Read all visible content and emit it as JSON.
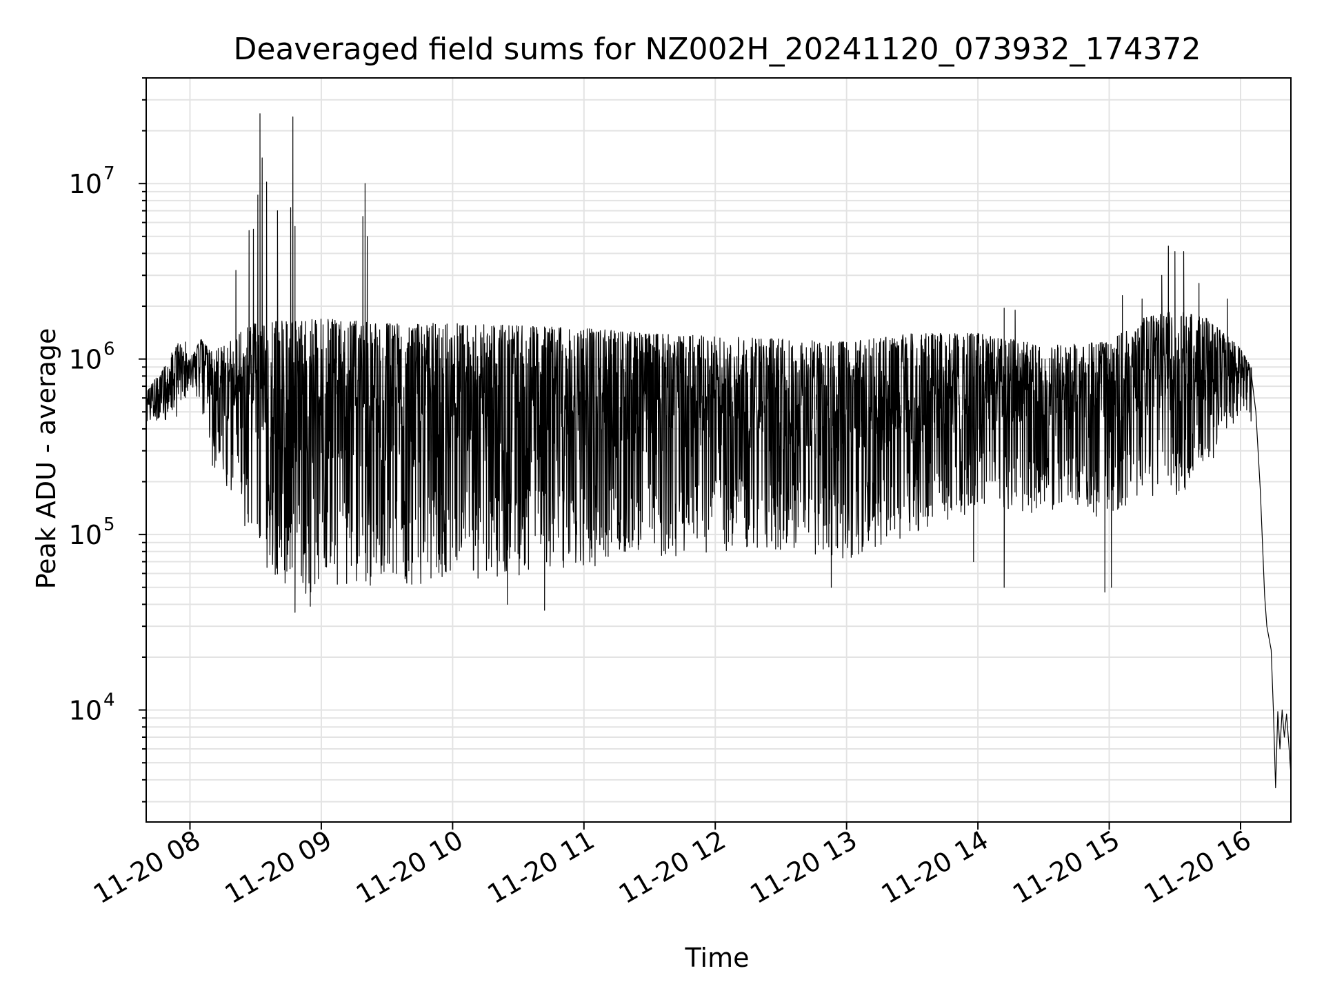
{
  "chart_data": {
    "type": "line",
    "title": "Deaveraged field sums for NZ002H_20241120_073932_174372",
    "xlabel": "Time",
    "ylabel": "Peak ADU - average",
    "yscale": "log",
    "ylim": [
      2300,
      40000000
    ],
    "xlim": [
      "2024-11-20T07:40",
      "2024-11-20T16:23"
    ],
    "grid": true,
    "x_ticks": [
      {
        "value": "2024-11-20T08:00",
        "label": "11-20 08"
      },
      {
        "value": "2024-11-20T09:00",
        "label": "11-20 09"
      },
      {
        "value": "2024-11-20T10:00",
        "label": "11-20 10"
      },
      {
        "value": "2024-11-20T11:00",
        "label": "11-20 11"
      },
      {
        "value": "2024-11-20T12:00",
        "label": "11-20 12"
      },
      {
        "value": "2024-11-20T13:00",
        "label": "11-20 13"
      },
      {
        "value": "2024-11-20T14:00",
        "label": "11-20 14"
      },
      {
        "value": "2024-11-20T15:00",
        "label": "11-20 15"
      },
      {
        "value": "2024-11-20T16:00",
        "label": "11-20 16"
      }
    ],
    "y_ticks": [
      {
        "value": 10000,
        "base": "10",
        "exp": "4"
      },
      {
        "value": 100000,
        "base": "10",
        "exp": "5"
      },
      {
        "value": 1000000,
        "base": "10",
        "exp": "6"
      },
      {
        "value": 10000000,
        "base": "10",
        "exp": "7"
      }
    ],
    "series": [
      {
        "color": "#000000",
        "envelope": [
          {
            "x": "2024-11-20T07:40",
            "low": 420000,
            "high": 650000
          },
          {
            "x": "2024-11-20T07:55",
            "low": 400000,
            "high": 1250000
          },
          {
            "x": "2024-11-20T08:00",
            "low": 700000,
            "high": 1000000
          },
          {
            "x": "2024-11-20T08:05",
            "low": 480000,
            "high": 1300000
          },
          {
            "x": "2024-11-20T08:10",
            "low": 250000,
            "high": 1100000
          },
          {
            "x": "2024-11-20T08:15",
            "low": 200000,
            "high": 1200000
          },
          {
            "x": "2024-11-20T08:20",
            "low": 140000,
            "high": 1300000
          },
          {
            "x": "2024-11-20T08:25",
            "low": 95000,
            "high": 1500000
          },
          {
            "x": "2024-11-20T08:30",
            "low": 75000,
            "high": 1600000
          },
          {
            "x": "2024-11-20T08:35",
            "low": 65000,
            "high": 1600000
          },
          {
            "x": "2024-11-20T08:40",
            "low": 55000,
            "high": 1650000
          },
          {
            "x": "2024-11-20T08:50",
            "low": 45000,
            "high": 1650000
          },
          {
            "x": "2024-11-20T09:00",
            "low": 47000,
            "high": 1700000
          },
          {
            "x": "2024-11-20T09:15",
            "low": 52000,
            "high": 1650000
          },
          {
            "x": "2024-11-20T09:30",
            "low": 50000,
            "high": 1600000
          },
          {
            "x": "2024-11-20T10:00",
            "low": 55000,
            "high": 1600000
          },
          {
            "x": "2024-11-20T10:30",
            "low": 58000,
            "high": 1550000
          },
          {
            "x": "2024-11-20T11:00",
            "low": 62000,
            "high": 1500000
          },
          {
            "x": "2024-11-20T11:30",
            "low": 72000,
            "high": 1400000
          },
          {
            "x": "2024-11-20T12:00",
            "low": 78000,
            "high": 1350000
          },
          {
            "x": "2024-11-20T12:30",
            "low": 82000,
            "high": 1300000
          },
          {
            "x": "2024-11-20T13:00",
            "low": 72000,
            "high": 1250000
          },
          {
            "x": "2024-11-20T13:30",
            "low": 100000,
            "high": 1400000
          },
          {
            "x": "2024-11-20T14:00",
            "low": 135000,
            "high": 1400000
          },
          {
            "x": "2024-11-20T14:30",
            "low": 130000,
            "high": 1200000
          },
          {
            "x": "2024-11-20T15:00",
            "low": 125000,
            "high": 1250000
          },
          {
            "x": "2024-11-20T15:15",
            "low": 165000,
            "high": 1700000
          },
          {
            "x": "2024-11-20T15:30",
            "low": 155000,
            "high": 1900000
          },
          {
            "x": "2024-11-20T15:45",
            "low": 240000,
            "high": 1700000
          },
          {
            "x": "2024-11-20T16:00",
            "low": 500000,
            "high": 1150000
          },
          {
            "x": "2024-11-20T16:05",
            "low": 420000,
            "high": 900000
          }
        ],
        "tail": [
          {
            "x": "2024-11-20T16:05",
            "y": 800000
          },
          {
            "x": "2024-11-20T16:07",
            "y": 500000
          },
          {
            "x": "2024-11-20T16:09",
            "y": 180000
          },
          {
            "x": "2024-11-20T16:11",
            "y": 45000
          },
          {
            "x": "2024-11-20T16:12",
            "y": 30000
          },
          {
            "x": "2024-11-20T16:14",
            "y": 22000
          },
          {
            "x": "2024-11-20T16:15",
            "y": 10000
          },
          {
            "x": "2024-11-20T16:16",
            "y": 3600
          },
          {
            "x": "2024-11-20T16:17",
            "y": 9800
          },
          {
            "x": "2024-11-20T16:18",
            "y": 6000
          },
          {
            "x": "2024-11-20T16:19",
            "y": 10000
          },
          {
            "x": "2024-11-20T16:20",
            "y": 7000
          },
          {
            "x": "2024-11-20T16:21",
            "y": 9500
          },
          {
            "x": "2024-11-20T16:22",
            "y": 6500
          },
          {
            "x": "2024-11-20T16:23",
            "y": 4300
          }
        ],
        "spikes": [
          {
            "x": "2024-11-20T07:58",
            "y": 1250000
          },
          {
            "x": "2024-11-20T08:21",
            "y": 3200000
          },
          {
            "x": "2024-11-20T08:27",
            "y": 5400000
          },
          {
            "x": "2024-11-20T08:29",
            "y": 5500000
          },
          {
            "x": "2024-11-20T08:31",
            "y": 8600000
          },
          {
            "x": "2024-11-20T08:32",
            "y": 25000000
          },
          {
            "x": "2024-11-20T08:33",
            "y": 14000000
          },
          {
            "x": "2024-11-20T08:35",
            "y": 10200000
          },
          {
            "x": "2024-11-20T08:40",
            "y": 7000000
          },
          {
            "x": "2024-11-20T08:46",
            "y": 7300000
          },
          {
            "x": "2024-11-20T08:47",
            "y": 24000000
          },
          {
            "x": "2024-11-20T08:48",
            "y": 5700000
          },
          {
            "x": "2024-11-20T09:19",
            "y": 6500000
          },
          {
            "x": "2024-11-20T09:20",
            "y": 10000000
          },
          {
            "x": "2024-11-20T09:21",
            "y": 5000000
          },
          {
            "x": "2024-11-20T14:12",
            "y": 1950000
          },
          {
            "x": "2024-11-20T14:17",
            "y": 1900000
          },
          {
            "x": "2024-11-20T15:06",
            "y": 2300000
          },
          {
            "x": "2024-11-20T15:15",
            "y": 2200000
          },
          {
            "x": "2024-11-20T15:24",
            "y": 3000000
          },
          {
            "x": "2024-11-20T15:27",
            "y": 4400000
          },
          {
            "x": "2024-11-20T15:30",
            "y": 4100000
          },
          {
            "x": "2024-11-20T15:34",
            "y": 4100000
          },
          {
            "x": "2024-11-20T15:41",
            "y": 2700000
          },
          {
            "x": "2024-11-20T15:54",
            "y": 2200000
          }
        ],
        "dips": [
          {
            "x": "2024-11-20T08:48",
            "y": 36000
          },
          {
            "x": "2024-11-20T08:55",
            "y": 39000
          },
          {
            "x": "2024-11-20T10:25",
            "y": 40000
          },
          {
            "x": "2024-11-20T10:42",
            "y": 37000
          },
          {
            "x": "2024-11-20T12:53",
            "y": 50000
          },
          {
            "x": "2024-11-20T13:58",
            "y": 70000
          },
          {
            "x": "2024-11-20T14:12",
            "y": 50000
          },
          {
            "x": "2024-11-20T14:58",
            "y": 47000
          },
          {
            "x": "2024-11-20T15:01",
            "y": 50000
          }
        ]
      }
    ]
  }
}
